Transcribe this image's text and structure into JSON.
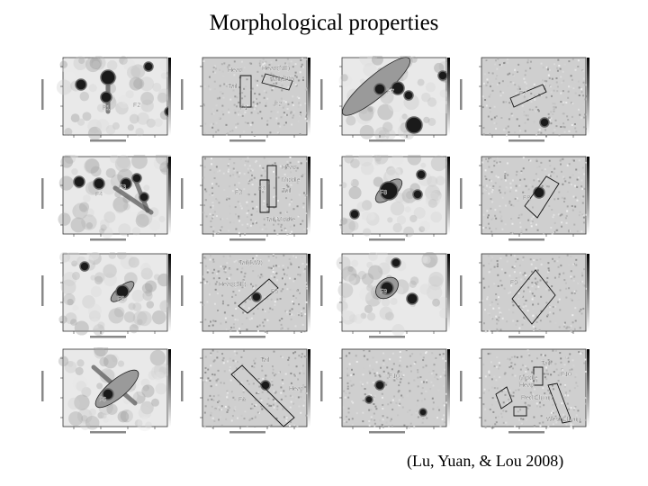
{
  "slide": {
    "title": "Morphological properties",
    "citation": "(Lu, Yuan, & Lou 2008)"
  },
  "panels": [
    {
      "id": "r1c1",
      "style": "smooth",
      "labels": [
        "F1",
        "F2"
      ],
      "regions": []
    },
    {
      "id": "r1c2",
      "style": "noisy",
      "labels": [
        "Head",
        "Head(NE)",
        "Tail",
        "Tail(SW)",
        "F1",
        "F2"
      ],
      "regions": [
        "box",
        "box"
      ]
    },
    {
      "id": "r1c3",
      "style": "smooth",
      "labels": [
        "F7"
      ],
      "regions": []
    },
    {
      "id": "r1c4",
      "style": "noisy",
      "labels": [
        "F7"
      ],
      "regions": [
        "box"
      ]
    },
    {
      "id": "r2c1",
      "style": "smooth",
      "labels": [
        "F4",
        "F3"
      ],
      "regions": []
    },
    {
      "id": "r2c2",
      "style": "noisy",
      "labels": [
        "Head",
        "Middle",
        "Tail",
        "F3",
        "F4",
        "Tail Middle"
      ],
      "regions": [
        "box",
        "box"
      ]
    },
    {
      "id": "r2c3",
      "style": "smooth",
      "labels": [
        "F8"
      ],
      "regions": []
    },
    {
      "id": "r2c4",
      "style": "noisy",
      "labels": [
        "F8"
      ],
      "regions": [
        "box"
      ]
    },
    {
      "id": "r3c1",
      "style": "smooth",
      "labels": [
        "F5"
      ],
      "regions": []
    },
    {
      "id": "r3c2",
      "style": "noisy",
      "labels": [
        "Tail(NW)",
        "Head(SE)",
        "F5"
      ],
      "regions": [
        "box"
      ]
    },
    {
      "id": "r3c3",
      "style": "smooth",
      "labels": [
        "F9"
      ],
      "regions": []
    },
    {
      "id": "r3c4",
      "style": "noisy",
      "labels": [
        "F9"
      ],
      "regions": [
        "box"
      ]
    },
    {
      "id": "r4c1",
      "style": "smooth",
      "labels": [
        "F6"
      ],
      "regions": []
    },
    {
      "id": "r4c2",
      "style": "noisy",
      "labels": [
        "Tail",
        "Head",
        "F6"
      ],
      "regions": [
        "box"
      ]
    },
    {
      "id": "r4c3",
      "style": "noisy",
      "labels": [
        "F10"
      ],
      "regions": []
    },
    {
      "id": "r4c4",
      "style": "noisy",
      "labels": [
        "Tail",
        "F10",
        "Middle",
        "Head",
        "Red Clump",
        "West Clump"
      ],
      "regions": [
        "box",
        "box",
        "box",
        "box"
      ]
    }
  ]
}
